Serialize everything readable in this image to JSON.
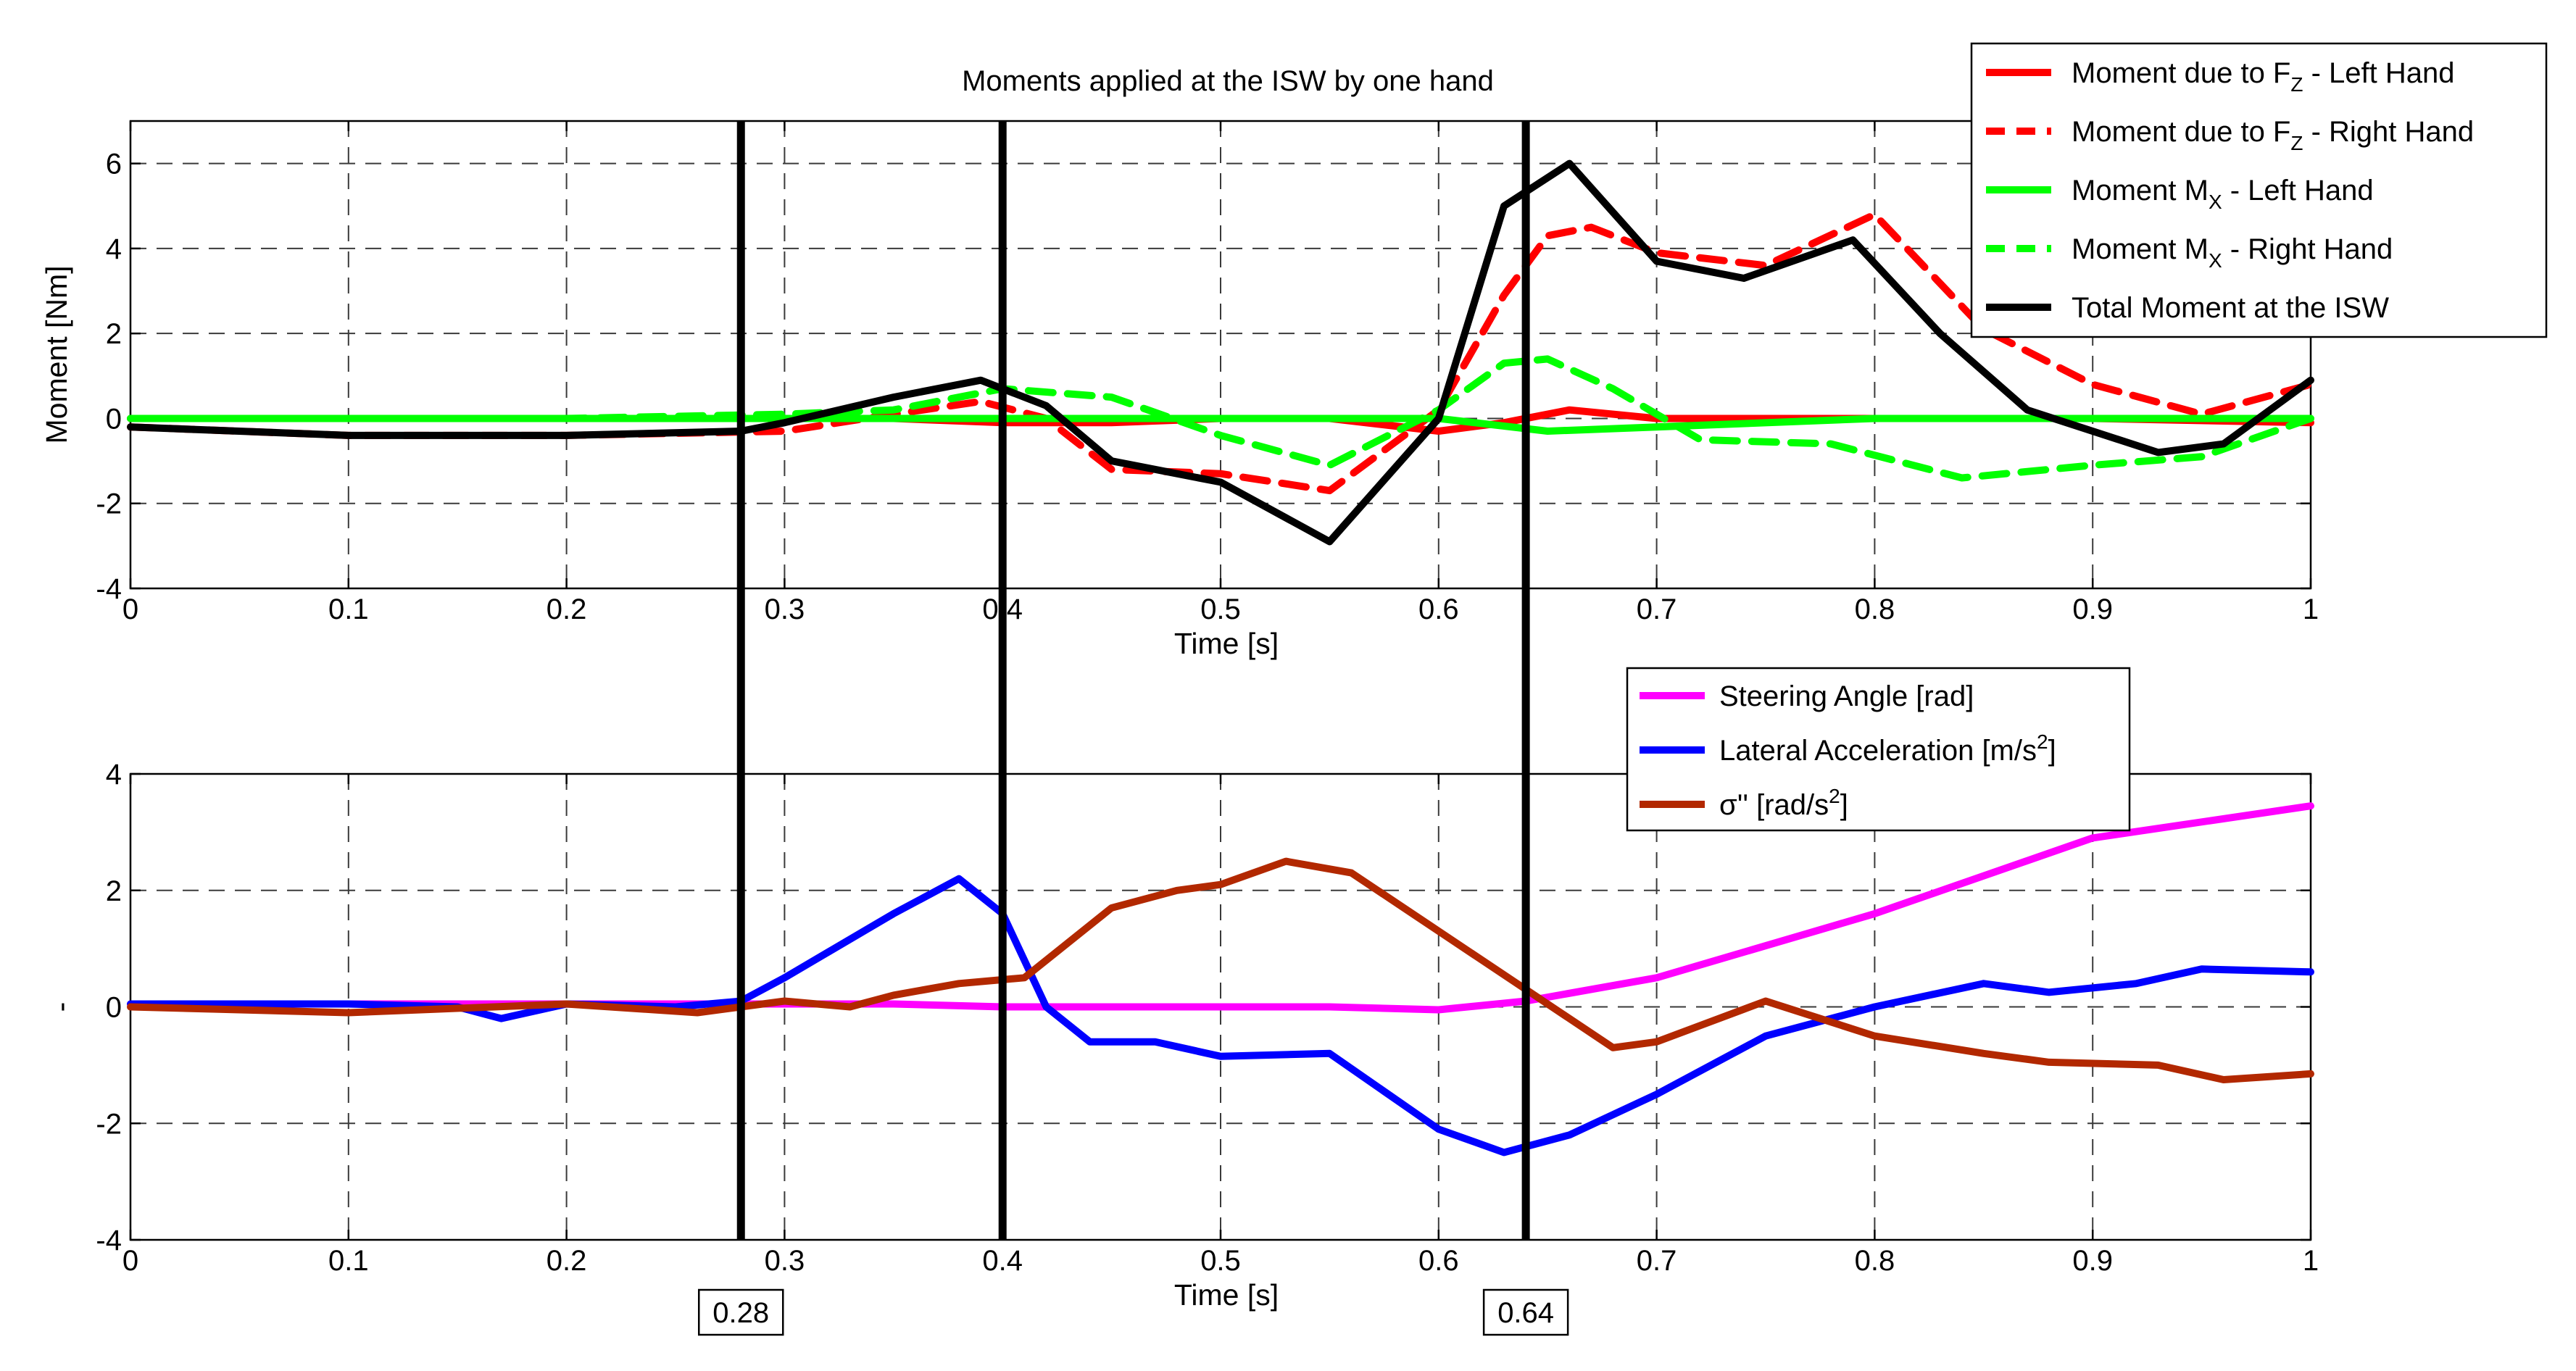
{
  "chart_data": [
    {
      "type": "line",
      "title": "Moments applied at the ISW by one hand",
      "xlabel": "Time [s]",
      "ylabel": "Moment [Nm]",
      "xlim": [
        0,
        1
      ],
      "ylim": [
        -4,
        7
      ],
      "xticks": [
        "0",
        "0.1",
        "0.2",
        "0.3",
        "0.4",
        "0.5",
        "0.6",
        "0.7",
        "0.8",
        "0.9",
        "1"
      ],
      "yticks": [
        "-4",
        "-2",
        "0",
        "2",
        "4",
        "6"
      ],
      "grid": true,
      "legend_position": "top-right",
      "series": [
        {
          "name": "Moment due to F_Z - Left Hand",
          "legend": {
            "pre": "Moment due to F",
            "sub": "Z",
            "post": " - Left Hand"
          },
          "color": "#ff0000",
          "style": "solid",
          "x": [
            0,
            0.1,
            0.2,
            0.3,
            0.35,
            0.4,
            0.45,
            0.5,
            0.55,
            0.6,
            0.63,
            0.66,
            0.7,
            0.8,
            0.9,
            1.0
          ],
          "y": [
            0,
            0,
            0,
            0,
            0,
            -0.1,
            -0.1,
            0,
            0,
            -0.3,
            -0.1,
            0.2,
            0,
            0,
            0,
            -0.1
          ]
        },
        {
          "name": "Moment due to F_Z - Right Hand",
          "legend": {
            "pre": "Moment due to F",
            "sub": "Z",
            "post": " - Right Hand"
          },
          "color": "#ff0000",
          "style": "dashed",
          "x": [
            0,
            0.1,
            0.2,
            0.3,
            0.35,
            0.39,
            0.42,
            0.45,
            0.5,
            0.55,
            0.6,
            0.63,
            0.65,
            0.67,
            0.7,
            0.75,
            0.8,
            0.85,
            0.9,
            0.95,
            1.0
          ],
          "y": [
            -0.2,
            -0.4,
            -0.4,
            -0.3,
            0.1,
            0.4,
            0,
            -1.2,
            -1.3,
            -1.7,
            0.2,
            2.9,
            4.3,
            4.5,
            3.9,
            3.6,
            4.8,
            2.1,
            0.8,
            0.1,
            0.8
          ]
        },
        {
          "name": "Moment M_X - Left Hand",
          "legend": {
            "pre": "Moment M",
            "sub": "X",
            "post": " - Left Hand"
          },
          "color": "#00ff00",
          "style": "solid",
          "x": [
            0,
            0.1,
            0.2,
            0.3,
            0.4,
            0.5,
            0.6,
            0.65,
            0.7,
            0.8,
            0.9,
            1.0
          ],
          "y": [
            0,
            0,
            0,
            0,
            0,
            0,
            0,
            -0.3,
            -0.2,
            0,
            0,
            0
          ]
        },
        {
          "name": "Moment M_X - Right Hand",
          "legend": {
            "pre": "Moment M",
            "sub": "X",
            "post": " - Right Hand"
          },
          "color": "#00ff00",
          "style": "dashed",
          "x": [
            0,
            0.1,
            0.2,
            0.3,
            0.35,
            0.4,
            0.45,
            0.5,
            0.55,
            0.6,
            0.63,
            0.65,
            0.68,
            0.72,
            0.78,
            0.84,
            0.9,
            0.95,
            1.0
          ],
          "y": [
            0,
            0,
            0,
            0.1,
            0.2,
            0.7,
            0.5,
            -0.4,
            -1.1,
            0.2,
            1.3,
            1.4,
            0.7,
            -0.5,
            -0.6,
            -1.4,
            -1.1,
            -0.9,
            0
          ]
        },
        {
          "name": "Total Moment at the ISW",
          "legend": {
            "pre": "Total Moment at the ISW",
            "sub": "",
            "post": ""
          },
          "color": "#000000",
          "style": "solid",
          "x": [
            0,
            0.1,
            0.2,
            0.28,
            0.3,
            0.35,
            0.39,
            0.42,
            0.45,
            0.5,
            0.55,
            0.6,
            0.63,
            0.66,
            0.7,
            0.74,
            0.79,
            0.83,
            0.87,
            0.93,
            0.96,
            1.0
          ],
          "y": [
            -0.2,
            -0.4,
            -0.4,
            -0.3,
            -0.1,
            0.5,
            0.9,
            0.3,
            -1.0,
            -1.5,
            -2.9,
            0,
            5.0,
            6.0,
            3.7,
            3.3,
            4.2,
            2.0,
            0.2,
            -0.8,
            -0.6,
            0.9
          ]
        }
      ],
      "markers": [
        {
          "x": 0.28,
          "label": "0.28"
        },
        {
          "x": 0.4,
          "label": ""
        },
        {
          "x": 0.64,
          "label": "0.64"
        }
      ]
    },
    {
      "type": "line",
      "title": "",
      "xlabel": "Time [s]",
      "ylabel": "-",
      "xlim": [
        0,
        1
      ],
      "ylim": [
        -4,
        4
      ],
      "xticks": [
        "0",
        "0.1",
        "0.2",
        "0.3",
        "0.4",
        "0.5",
        "0.6",
        "0.7",
        "0.8",
        "0.9",
        "1"
      ],
      "yticks": [
        "-4",
        "-2",
        "0",
        "2",
        "4"
      ],
      "grid": true,
      "legend_position": "top-right",
      "series": [
        {
          "name": "Steering Angle [rad]",
          "legend": {
            "pre": "Steering Angle [rad]",
            "sup": "",
            "post": ""
          },
          "color": "#ff00ff",
          "style": "solid",
          "x": [
            0,
            0.1,
            0.2,
            0.3,
            0.35,
            0.4,
            0.5,
            0.55,
            0.6,
            0.64,
            0.7,
            0.8,
            0.9,
            1.0
          ],
          "y": [
            0.05,
            0.05,
            0.05,
            0.05,
            0.05,
            0.0,
            0.0,
            0.0,
            -0.05,
            0.1,
            0.5,
            1.6,
            2.9,
            3.45
          ]
        },
        {
          "name": "Lateral Acceleration [m/s^2]",
          "legend": {
            "pre": "Lateral Acceleration [m/s",
            "sup": "2",
            "post": "]"
          },
          "color": "#0000ff",
          "style": "solid",
          "x": [
            0,
            0.1,
            0.15,
            0.17,
            0.2,
            0.25,
            0.28,
            0.3,
            0.35,
            0.38,
            0.4,
            0.42,
            0.44,
            0.47,
            0.5,
            0.55,
            0.6,
            0.63,
            0.66,
            0.7,
            0.75,
            0.8,
            0.85,
            0.88,
            0.92,
            0.95,
            1.0
          ],
          "y": [
            0.05,
            0.05,
            0.0,
            -0.2,
            0.05,
            0.0,
            0.1,
            0.5,
            1.6,
            2.2,
            1.6,
            0.0,
            -0.6,
            -0.6,
            -0.85,
            -0.8,
            -2.1,
            -2.5,
            -2.2,
            -1.5,
            -0.5,
            0.0,
            0.4,
            0.25,
            0.4,
            0.65,
            0.6
          ]
        },
        {
          "name": "σ'' [rad/s^2]",
          "legend": {
            "pre": "σ'' [rad/s",
            "sup": "2",
            "post": "]"
          },
          "color": "#b22800",
          "style": "solid",
          "x": [
            0,
            0.1,
            0.2,
            0.26,
            0.3,
            0.33,
            0.35,
            0.38,
            0.41,
            0.45,
            0.48,
            0.5,
            0.53,
            0.56,
            0.6,
            0.64,
            0.68,
            0.7,
            0.75,
            0.8,
            0.85,
            0.88,
            0.93,
            0.96,
            1.0
          ],
          "y": [
            0.0,
            -0.1,
            0.05,
            -0.1,
            0.1,
            0.0,
            0.2,
            0.4,
            0.5,
            1.7,
            2.0,
            2.1,
            2.5,
            2.3,
            1.3,
            0.3,
            -0.7,
            -0.6,
            0.1,
            -0.5,
            -0.8,
            -0.95,
            -1.0,
            -1.25,
            -1.15
          ]
        }
      ],
      "markers": [
        {
          "x": 0.28,
          "label": "0.28"
        },
        {
          "x": 0.4,
          "label": ""
        },
        {
          "x": 0.64,
          "label": "0.64"
        }
      ]
    }
  ]
}
